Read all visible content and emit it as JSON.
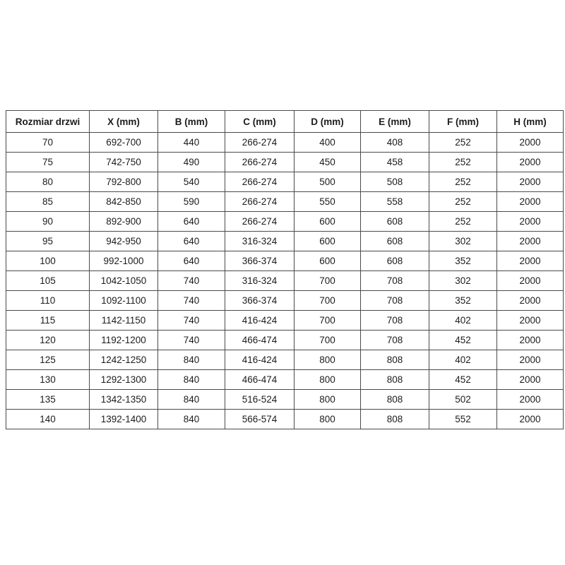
{
  "chart_data": {
    "type": "table",
    "columns": [
      "Rozmiar drzwi",
      "X (mm)",
      "B (mm)",
      "C (mm)",
      "D (mm)",
      "E (mm)",
      "F (mm)",
      "H (mm)"
    ],
    "rows": [
      [
        "70",
        "692-700",
        "440",
        "266-274",
        "400",
        "408",
        "252",
        "2000"
      ],
      [
        "75",
        "742-750",
        "490",
        "266-274",
        "450",
        "458",
        "252",
        "2000"
      ],
      [
        "80",
        "792-800",
        "540",
        "266-274",
        "500",
        "508",
        "252",
        "2000"
      ],
      [
        "85",
        "842-850",
        "590",
        "266-274",
        "550",
        "558",
        "252",
        "2000"
      ],
      [
        "90",
        "892-900",
        "640",
        "266-274",
        "600",
        "608",
        "252",
        "2000"
      ],
      [
        "95",
        "942-950",
        "640",
        "316-324",
        "600",
        "608",
        "302",
        "2000"
      ],
      [
        "100",
        "992-1000",
        "640",
        "366-374",
        "600",
        "608",
        "352",
        "2000"
      ],
      [
        "105",
        "1042-1050",
        "740",
        "316-324",
        "700",
        "708",
        "302",
        "2000"
      ],
      [
        "110",
        "1092-1100",
        "740",
        "366-374",
        "700",
        "708",
        "352",
        "2000"
      ],
      [
        "115",
        "1142-1150",
        "740",
        "416-424",
        "700",
        "708",
        "402",
        "2000"
      ],
      [
        "120",
        "1192-1200",
        "740",
        "466-474",
        "700",
        "708",
        "452",
        "2000"
      ],
      [
        "125",
        "1242-1250",
        "840",
        "416-424",
        "800",
        "808",
        "402",
        "2000"
      ],
      [
        "130",
        "1292-1300",
        "840",
        "466-474",
        "800",
        "808",
        "452",
        "2000"
      ],
      [
        "135",
        "1342-1350",
        "840",
        "516-524",
        "800",
        "808",
        "502",
        "2000"
      ],
      [
        "140",
        "1392-1400",
        "840",
        "566-574",
        "800",
        "808",
        "552",
        "2000"
      ]
    ],
    "title": "",
    "layout": {
      "grid": true,
      "header_bold": true,
      "text_align": "center"
    },
    "colors": {
      "border": "#4a4a4a",
      "text": "#1c1c1c",
      "background": "#ffffff"
    }
  }
}
